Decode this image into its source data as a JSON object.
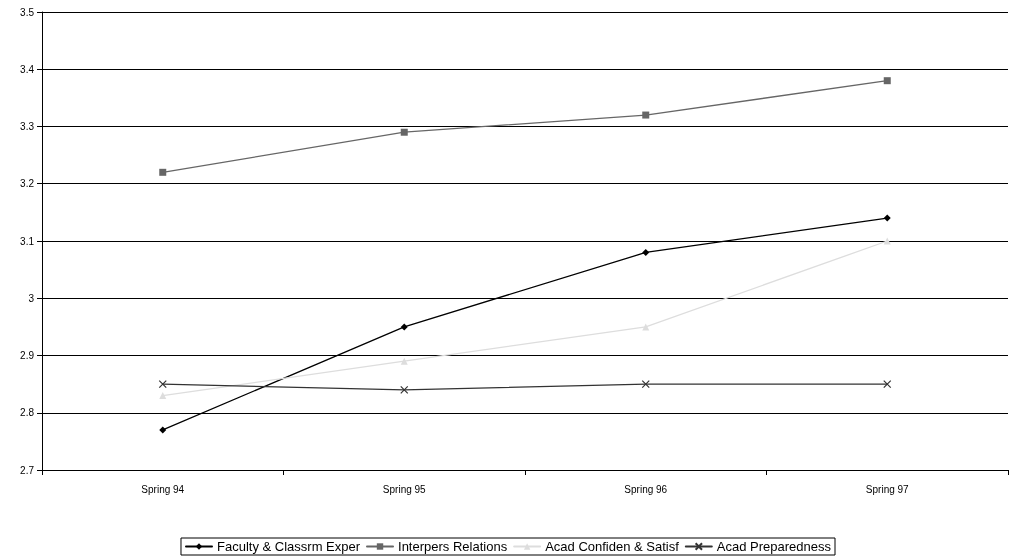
{
  "chart_data": {
    "type": "line",
    "categories": [
      "Spring 94",
      "Spring 95",
      "Spring 96",
      "Spring 97"
    ],
    "series": [
      {
        "name": "Faculty & Classrm Exper",
        "color": "#000000",
        "marker": "diamond",
        "values": [
          2.77,
          2.95,
          3.08,
          3.14
        ]
      },
      {
        "name": "Interpers Relations",
        "color": "#666666",
        "marker": "square",
        "values": [
          3.22,
          3.29,
          3.32,
          3.38
        ]
      },
      {
        "name": "Acad Confiden & Satisf",
        "color": "#dddddd",
        "marker": "triangle",
        "values": [
          2.83,
          2.89,
          2.95,
          3.1
        ]
      },
      {
        "name": "Acad Preparedness",
        "color": "#333333",
        "marker": "cross",
        "values": [
          2.85,
          2.84,
          2.85,
          2.85
        ]
      }
    ],
    "ylim": [
      2.7,
      3.5
    ],
    "yticks": [
      2.7,
      2.8,
      2.9,
      3,
      3.1,
      3.2,
      3.3,
      3.4,
      3.5
    ],
    "grid": "y",
    "legend": "bottom",
    "line_style": "solid"
  }
}
